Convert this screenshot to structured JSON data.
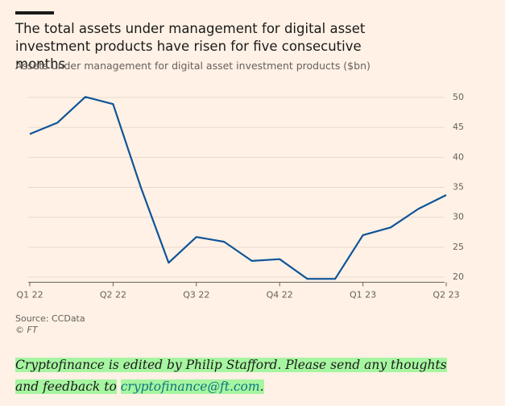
{
  "chart_data": {
    "type": "line",
    "title": "The total assets under management for digital asset investment products have risen for five consecutive months",
    "subtitle": "Assets under management for digital asset investment products ($bn)",
    "categories": [
      "Q1 22",
      null,
      null,
      "Q2 22",
      null,
      null,
      "Q3 22",
      null,
      null,
      "Q4 22",
      null,
      null,
      "Q1 23",
      null,
      null,
      "Q2 23"
    ],
    "series": [
      {
        "name": "Assets under management",
        "color": "#0f5499",
        "values": [
          43.9,
          45.8,
          50.1,
          48.9,
          35.0,
          22.4,
          26.7,
          25.9,
          22.7,
          23.0,
          19.7,
          19.7,
          27.0,
          28.3,
          31.4,
          33.7
        ]
      }
    ],
    "ylim": [
      19,
      51
    ],
    "yticks": [
      20,
      25,
      30,
      35,
      40,
      45,
      50
    ],
    "grid": true,
    "source": "Source: CCData",
    "credit": "© FT"
  },
  "footer": {
    "text": "Cryptofinance is edited by Philip Stafford. Please send any thoughts and feedback to",
    "link": "cryptofinance@ft.com",
    "end": "."
  }
}
